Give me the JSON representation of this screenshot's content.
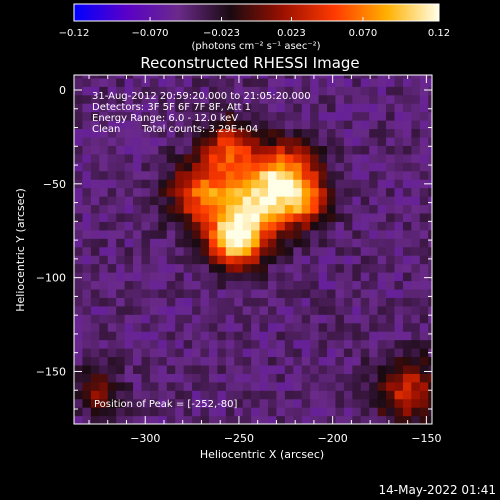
{
  "chart_data": {
    "type": "heatmap",
    "title": "Reconstructed RHESSI Image",
    "xlabel": "Heliocentric X (arcsec)",
    "ylabel": "Heliocentric Y (arcsec)",
    "xlim": [
      -338,
      -147
    ],
    "ylim": [
      -178,
      8
    ],
    "xticks": [
      -300,
      -250,
      -200,
      -150
    ],
    "xtick_labels": [
      "−300",
      "−250",
      "−200",
      "−150"
    ],
    "yticks": [
      0,
      -50,
      -100,
      -150
    ],
    "ytick_labels": [
      "0",
      "−50",
      "−100",
      "−150"
    ],
    "colorbar": {
      "min": -0.12,
      "max": 0.12,
      "ticks": [
        -0.12,
        -0.07,
        -0.023,
        0.023,
        0.07,
        0.12
      ],
      "tick_labels": [
        "−0.12",
        "−0.070",
        "−0.023",
        "0.023",
        "0.070",
        "0.12"
      ],
      "unit": "(photons cm⁻² s⁻¹ asec⁻²)",
      "colors": [
        "#0000ff",
        "#5a00c8",
        "#6a2a8a",
        "#1a0a10",
        "#9a1000",
        "#ff3a00",
        "#ffb000",
        "#ffffe8"
      ]
    },
    "annotations": [
      "31-Aug-2012 20:59:20.000 to 21:05:20.000",
      "Detectors: 3F 5F 6F 7F 8F, Att 1",
      "Energy Range: 6.0 - 12.0 keV",
      "Clean",
      "Total counts: 3.29E+04"
    ],
    "peak": {
      "label": "Position of Peak = [-252,-80]",
      "x": -252,
      "y": -80,
      "value": 0.12
    },
    "hot_regions": [
      {
        "x": -252,
        "y": -80,
        "sigma": 10,
        "value": 0.11
      },
      {
        "x": -242,
        "y": -60,
        "sigma": 14,
        "value": 0.09
      },
      {
        "x": -225,
        "y": -45,
        "sigma": 12,
        "value": 0.075
      },
      {
        "x": -270,
        "y": -55,
        "sigma": 12,
        "value": 0.06
      },
      {
        "x": -255,
        "y": -30,
        "sigma": 10,
        "value": 0.05
      },
      {
        "x": -215,
        "y": -60,
        "sigma": 9,
        "value": 0.045
      },
      {
        "x": -160,
        "y": -160,
        "sigma": 12,
        "value": 0.04
      },
      {
        "x": -325,
        "y": -160,
        "sigma": 8,
        "value": 0.02
      }
    ],
    "background_value": -0.045
  },
  "footer": {
    "date": "14-May-2022 01:41"
  }
}
